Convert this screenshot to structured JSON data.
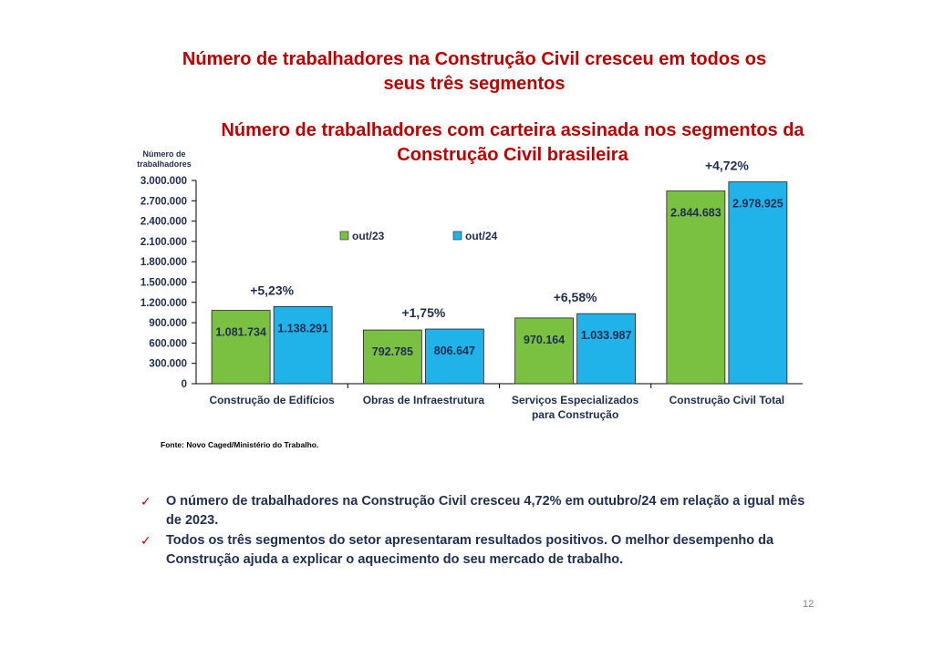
{
  "slide": {
    "title_line1": "Número de trabalhadores na Construção Civil cresceu em todos os",
    "title_line2": "seus três segmentos",
    "page_number": "12"
  },
  "chart_data": {
    "type": "bar",
    "title_line1": "Número de trabalhadores com carteira assinada nos segmentos da",
    "title_line2": "Construção Civil brasileira",
    "ylabel_line1": "Número de",
    "ylabel_line2": "trabalhadores",
    "ylim": [
      0,
      3000000
    ],
    "yticks": [
      0,
      300000,
      600000,
      900000,
      1200000,
      1500000,
      1800000,
      2100000,
      2400000,
      2700000,
      3000000
    ],
    "ytick_labels": [
      "0",
      "300.000",
      "600.000",
      "900.000",
      "1.200.000",
      "1.500.000",
      "1.800.000",
      "2.100.000",
      "2.400.000",
      "2.700.000",
      "3.000.000"
    ],
    "categories": [
      [
        "Construção de Edifícios"
      ],
      [
        "Obras de Infraestrutura"
      ],
      [
        "Serviços Especializados",
        "para Construção"
      ],
      [
        "Construção Civil Total"
      ]
    ],
    "series": [
      {
        "name": "out/23",
        "color": "#7ac142",
        "values": [
          1081734,
          792785,
          970164,
          2844683
        ],
        "labels": [
          "1.081.734",
          "792.785",
          "970.164",
          "2.844.683"
        ]
      },
      {
        "name": "out/24",
        "color": "#1fb3ea",
        "values": [
          1138291,
          806647,
          1033987,
          2978925
        ],
        "labels": [
          "1.138.291",
          "806.647",
          "1.033.987",
          "2.978.925"
        ]
      }
    ],
    "growth_labels": [
      "+5,23%",
      "+1,75%",
      "+6,58%",
      "+4,72%"
    ],
    "legend_position": "top-center",
    "grid": false
  },
  "source": "Fonte: Novo Caged/Ministério do Trabalho.",
  "bullets": [
    "O número de trabalhadores na Construção Civil cresceu 4,72% em outubro/24 em relação a igual mês de 2023.",
    "Todos os três segmentos do setor apresentaram resultados positivos. O melhor desempenho da Construção ajuda a explicar o aquecimento do seu mercado de trabalho."
  ],
  "check_icon": "check-icon"
}
